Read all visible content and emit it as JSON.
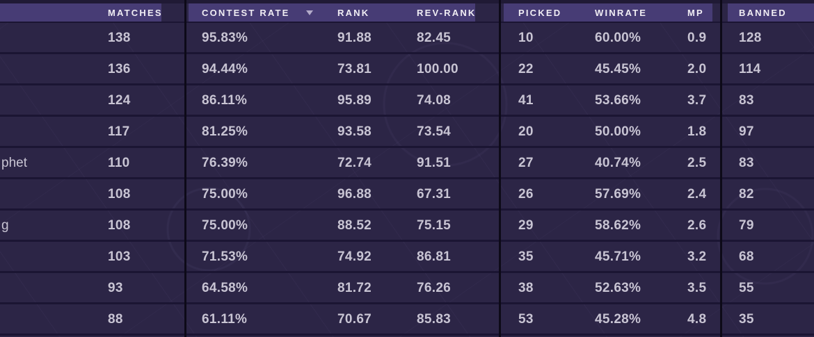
{
  "table": {
    "columns": [
      {
        "id": "matches",
        "label": "MATCHES"
      },
      {
        "id": "contest",
        "label": "CONTEST RATE"
      },
      {
        "id": "rank",
        "label": "RANK"
      },
      {
        "id": "revrank",
        "label": "REV-RANK"
      },
      {
        "id": "picked",
        "label": "PICKED"
      },
      {
        "id": "winrate",
        "label": "WINRATE"
      },
      {
        "id": "mp",
        "label": "MP"
      },
      {
        "id": "banned",
        "label": "BANNED"
      }
    ],
    "sort": {
      "column": "CONTEST RATE",
      "direction": "desc"
    },
    "rows": [
      {
        "name": "",
        "matches": "138",
        "contest": "95.83%",
        "rank": "91.88",
        "revrank": "82.45",
        "picked": "10",
        "winrate": "60.00%",
        "mp": "0.9",
        "banned": "128"
      },
      {
        "name": "",
        "matches": "136",
        "contest": "94.44%",
        "rank": "73.81",
        "revrank": "100.00",
        "picked": "22",
        "winrate": "45.45%",
        "mp": "2.0",
        "banned": "114"
      },
      {
        "name": "",
        "matches": "124",
        "contest": "86.11%",
        "rank": "95.89",
        "revrank": "74.08",
        "picked": "41",
        "winrate": "53.66%",
        "mp": "3.7",
        "banned": "83"
      },
      {
        "name": "",
        "matches": "117",
        "contest": "81.25%",
        "rank": "93.58",
        "revrank": "73.54",
        "picked": "20",
        "winrate": "50.00%",
        "mp": "1.8",
        "banned": "97"
      },
      {
        "name": "phet",
        "matches": "110",
        "contest": "76.39%",
        "rank": "72.74",
        "revrank": "91.51",
        "picked": "27",
        "winrate": "40.74%",
        "mp": "2.5",
        "banned": "83"
      },
      {
        "name": "",
        "matches": "108",
        "contest": "75.00%",
        "rank": "96.88",
        "revrank": "67.31",
        "picked": "26",
        "winrate": "57.69%",
        "mp": "2.4",
        "banned": "82"
      },
      {
        "name": "g",
        "matches": "108",
        "contest": "75.00%",
        "rank": "88.52",
        "revrank": "75.15",
        "picked": "29",
        "winrate": "58.62%",
        "mp": "2.6",
        "banned": "79"
      },
      {
        "name": "",
        "matches": "103",
        "contest": "71.53%",
        "rank": "74.92",
        "revrank": "86.81",
        "picked": "35",
        "winrate": "45.71%",
        "mp": "3.2",
        "banned": "68"
      },
      {
        "name": "",
        "matches": "93",
        "contest": "64.58%",
        "rank": "81.72",
        "revrank": "76.26",
        "picked": "38",
        "winrate": "52.63%",
        "mp": "3.5",
        "banned": "55"
      },
      {
        "name": "",
        "matches": "88",
        "contest": "61.11%",
        "rank": "70.67",
        "revrank": "85.83",
        "picked": "53",
        "winrate": "45.28%",
        "mp": "4.8",
        "banned": "35"
      }
    ]
  },
  "colors": {
    "header_band": "#473c75",
    "header_text": "#f0edf4",
    "row_background": "#2c2546",
    "cell_text": "#c8c4d3",
    "row_separator": "#1b1533",
    "group_divider": "#0d0a18",
    "top_strip": "#201a35",
    "sort_icon": "#b3abc9"
  }
}
